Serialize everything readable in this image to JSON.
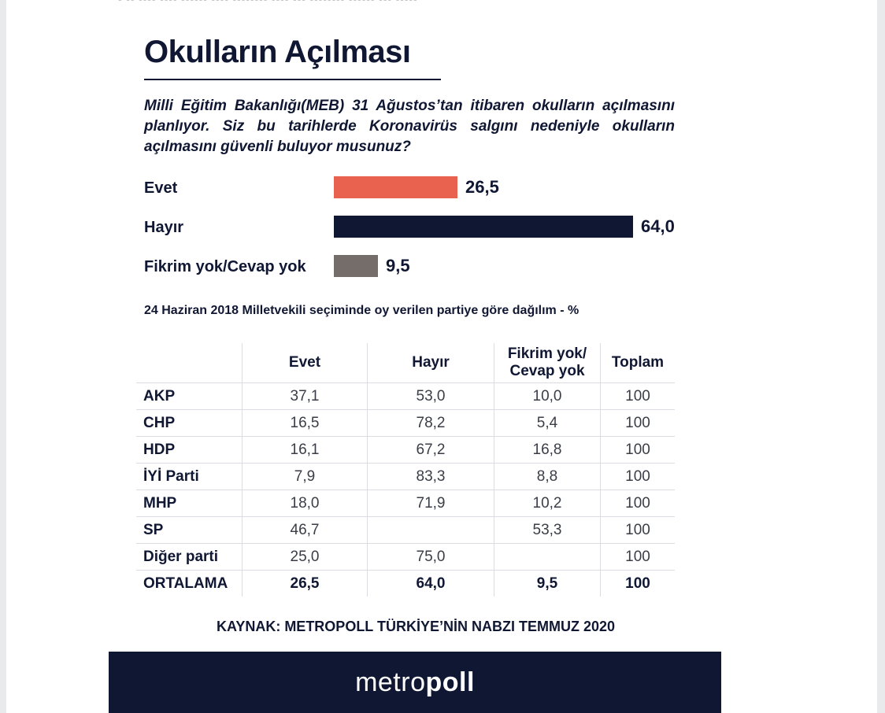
{
  "colors": {
    "evet": "#e96250",
    "hayir": "#101733",
    "fikrim": "#756d6a"
  },
  "title": "Okulların Açılması",
  "question": "Milli Eğitim Bakanlığı(MEB) 31 Ağustos’tan itibaren okulların açılmasını planlıyor. Siz bu tarihlerde Koronavirüs salgını nedeniyle okulların açılmasını güvenli buluyor musunuz?",
  "chart_data": [
    {
      "type": "bar",
      "orientation": "horizontal",
      "categories": [
        "Evet",
        "Hayır",
        "Fikrim yok/Cevap yok"
      ],
      "values": [
        26.5,
        64.0,
        9.5
      ],
      "value_labels": [
        "26,5",
        "64,0",
        "9,5"
      ]
    },
    {
      "type": "table",
      "title": "24 Haziran 2018 Milletvekili seçiminde oy verilen partiye göre dağılım - %",
      "columns": [
        "",
        "Evet",
        "Hayır",
        "Fikrim yok/ Cevap yok",
        "Toplam"
      ],
      "rows": [
        [
          "AKP",
          "37,1",
          "53,0",
          "10,0",
          "100"
        ],
        [
          "CHP",
          "16,5",
          "78,2",
          "5,4",
          "100"
        ],
        [
          "HDP",
          "16,1",
          "67,2",
          "16,8",
          "100"
        ],
        [
          "İYİ Parti",
          "7,9",
          "83,3",
          "8,8",
          "100"
        ],
        [
          "MHP",
          "18,0",
          "71,9",
          "10,2",
          "100"
        ],
        [
          "SP",
          "46,7",
          "",
          "53,3",
          "100"
        ],
        [
          "Diğer parti",
          "25,0",
          "75,0",
          "",
          "100"
        ],
        [
          "ORTALAMA",
          "26,5",
          "64,0",
          "9,5",
          "100"
        ]
      ]
    }
  ],
  "source": "KAYNAK: METROPOLL TÜRKİYE’NİN NABZI TEMMUZ 2020",
  "logo": {
    "light": "metro",
    "bold": "poll"
  }
}
